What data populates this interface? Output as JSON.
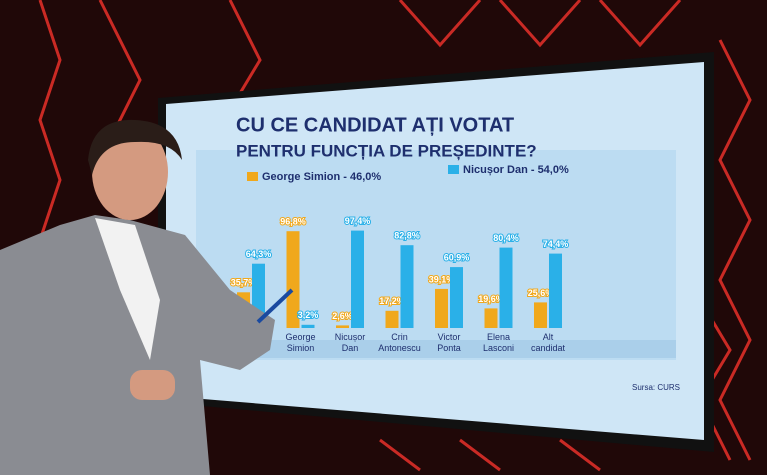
{
  "chart_data": {
    "type": "bar",
    "title": "CU CE CANDIDAT AȚI VOTAT",
    "subtitle": "PENTRU FUNCȚIA DE PREȘEDINTE?",
    "source": "Sursa: CURS",
    "categories": [
      null,
      "George Simion",
      "Nicușor Dan",
      "Crin Antonescu",
      "Victor Ponta",
      "Elena Lasconi",
      "Alt candidat"
    ],
    "series": [
      {
        "name": "George Simion - 46,0%",
        "color": "#f0a81c",
        "values": [
          35.7,
          96.8,
          2.6,
          17.2,
          39.1,
          19.6,
          25.6
        ],
        "value_labels": [
          "35,7%",
          "96,8%",
          "2,6%",
          "17,2%",
          "39,1%",
          "19,6%",
          "25,6%"
        ]
      },
      {
        "name": "Nicușor Dan - 54,0%",
        "color": "#2ab0e8",
        "values": [
          64.3,
          3.2,
          97.4,
          82.8,
          60.9,
          80.4,
          74.4
        ],
        "value_labels": [
          "64,3%",
          "3,2%",
          "97,4%",
          "82,8%",
          "60,9%",
          "80,4%",
          "74,4%"
        ]
      }
    ]
  }
}
